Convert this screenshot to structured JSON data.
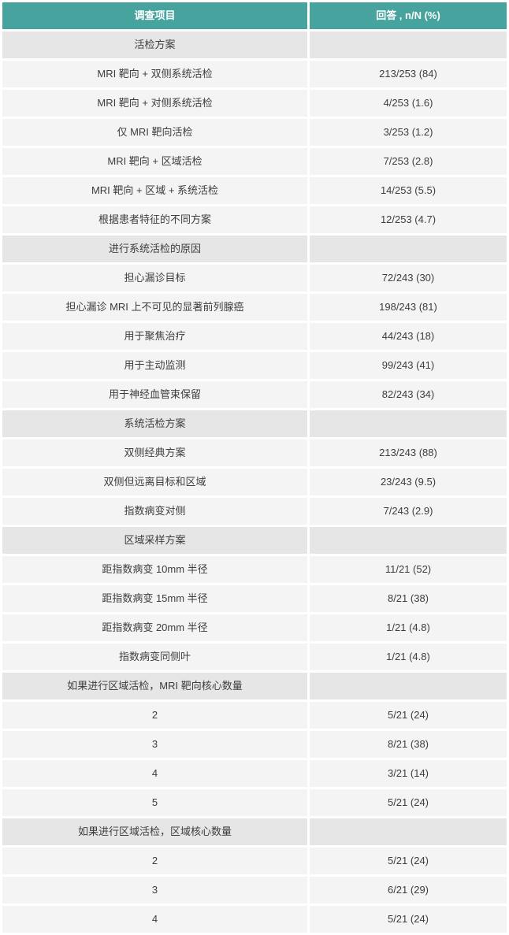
{
  "colors": {
    "header_bg": "#47a39e",
    "header_text": "#ffffff",
    "section_row_bg": "#e6e6e6",
    "data_row_bg": "#f4f4f4",
    "body_text": "#3d3d3d",
    "row_gap": "#ffffff"
  },
  "table": {
    "columns": [
      "调查项目",
      "回答 , n/N (%)"
    ],
    "rows": [
      {
        "type": "section",
        "item": "活检方案",
        "value": ""
      },
      {
        "type": "data",
        "item": "MRI 靶向 + 双侧系统活检",
        "value": "213/253 (84)"
      },
      {
        "type": "data",
        "item": "MRI 靶向 + 对侧系统活检",
        "value": "4/253 (1.6)"
      },
      {
        "type": "data",
        "item": "仅 MRI 靶向活检",
        "value": "3/253 (1.2)"
      },
      {
        "type": "data",
        "item": "MRI 靶向 + 区域活检",
        "value": "7/253 (2.8)"
      },
      {
        "type": "data",
        "item": "MRI 靶向 + 区域 + 系统活检",
        "value": "14/253 (5.5)"
      },
      {
        "type": "data",
        "item": "根据患者特征的不同方案",
        "value": "12/253 (4.7)"
      },
      {
        "type": "section",
        "item": "进行系统活检的原因",
        "value": ""
      },
      {
        "type": "data",
        "item": "担心漏诊目标",
        "value": "72/243 (30)"
      },
      {
        "type": "data",
        "item": "担心漏诊 MRI 上不可见的显著前列腺癌",
        "value": "198/243 (81)"
      },
      {
        "type": "data",
        "item": "用于聚焦治疗",
        "value": "44/243 (18)"
      },
      {
        "type": "data",
        "item": "用于主动监测",
        "value": "99/243 (41)"
      },
      {
        "type": "data",
        "item": "用于神经血管束保留",
        "value": "82/243 (34)"
      },
      {
        "type": "section",
        "item": "系统活检方案",
        "value": ""
      },
      {
        "type": "data",
        "item": "双侧经典方案",
        "value": "213/243 (88)"
      },
      {
        "type": "data",
        "item": "双侧但远离目标和区域",
        "value": "23/243 (9.5)"
      },
      {
        "type": "data",
        "item": "指数病变对侧",
        "value": "7/243 (2.9)"
      },
      {
        "type": "section",
        "item": "区域采样方案",
        "value": ""
      },
      {
        "type": "data",
        "item": "距指数病变 10mm 半径",
        "value": "11/21 (52)"
      },
      {
        "type": "data",
        "item": "距指数病变 15mm 半径",
        "value": "8/21 (38)"
      },
      {
        "type": "data",
        "item": "距指数病变 20mm 半径",
        "value": "1/21 (4.8)"
      },
      {
        "type": "data",
        "item": "指数病变同侧叶",
        "value": "1/21 (4.8)"
      },
      {
        "type": "section",
        "item": "如果进行区域活检，MRI 靶向核心数量",
        "value": ""
      },
      {
        "type": "data",
        "item": "2",
        "value": "5/21 (24)"
      },
      {
        "type": "data",
        "item": "3",
        "value": "8/21 (38)"
      },
      {
        "type": "data",
        "item": "4",
        "value": "3/21 (14)"
      },
      {
        "type": "data",
        "item": "5",
        "value": "5/21 (24)"
      },
      {
        "type": "section",
        "item": "如果进行区域活检，区域核心数量",
        "value": ""
      },
      {
        "type": "data",
        "item": "2",
        "value": "5/21 (24)"
      },
      {
        "type": "data",
        "item": "3",
        "value": "6/21 (29)"
      },
      {
        "type": "data",
        "item": "4",
        "value": "5/21 (24)"
      }
    ]
  }
}
